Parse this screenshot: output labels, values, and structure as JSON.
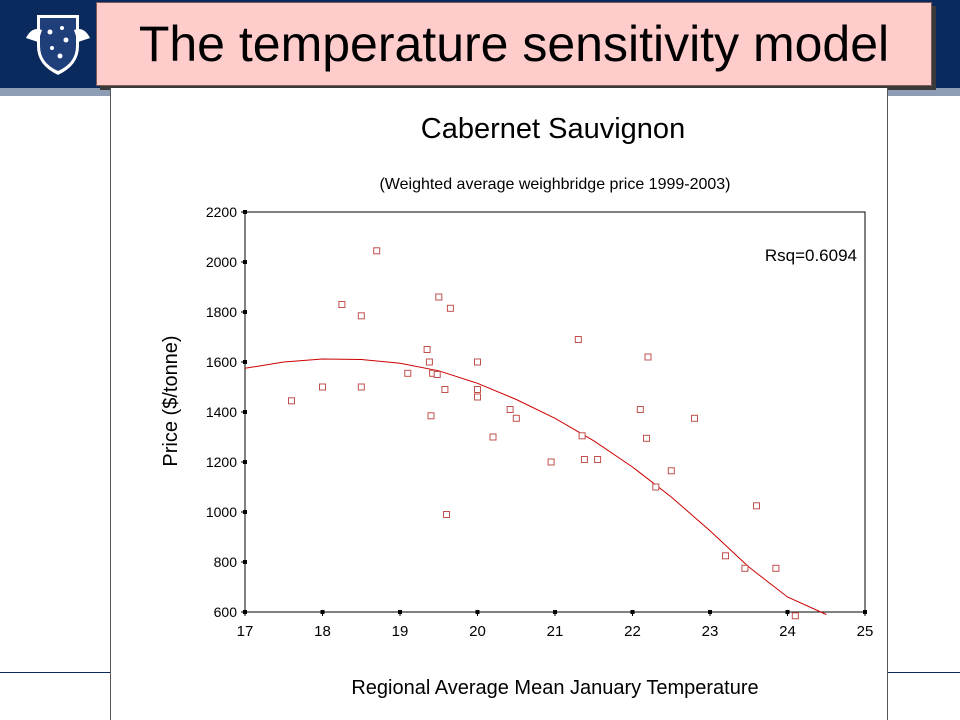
{
  "slide": {
    "title": "The temperature sensitivity model",
    "logo_icon": "university-crest-icon"
  },
  "colors": {
    "header_band": "#0a2a5e",
    "title_bg": "#ffcccc",
    "marker": "#c0504d",
    "curve": "#cc0000"
  },
  "chart_data": {
    "type": "scatter",
    "title": "Cabernet Sauvignon",
    "subtitle": "(Weighted average weighbridge price 1999-2003)",
    "xlabel": "Regional Average Mean January Temperature",
    "ylabel": "Price ($/tonne)",
    "annotation": "Rsq=0.6094",
    "xlim": [
      17,
      25
    ],
    "ylim": [
      600,
      2200
    ],
    "xticks": [
      17,
      18,
      19,
      20,
      21,
      22,
      23,
      24,
      25
    ],
    "yticks": [
      600,
      800,
      1000,
      1200,
      1400,
      1600,
      1800,
      2000,
      2200
    ],
    "grid": false,
    "legend": "none",
    "points": [
      [
        17.6,
        1445
      ],
      [
        18.0,
        1500
      ],
      [
        18.25,
        1830
      ],
      [
        18.5,
        1785
      ],
      [
        18.5,
        1500
      ],
      [
        18.7,
        2045
      ],
      [
        19.1,
        1555
      ],
      [
        19.35,
        1650
      ],
      [
        19.38,
        1600
      ],
      [
        19.4,
        1385
      ],
      [
        19.42,
        1555
      ],
      [
        19.48,
        1550
      ],
      [
        19.5,
        1860
      ],
      [
        19.58,
        1490
      ],
      [
        19.6,
        990
      ],
      [
        19.65,
        1815
      ],
      [
        20.0,
        1600
      ],
      [
        20.0,
        1490
      ],
      [
        20.0,
        1460
      ],
      [
        20.2,
        1300
      ],
      [
        20.42,
        1410
      ],
      [
        20.5,
        1375
      ],
      [
        20.95,
        1200
      ],
      [
        21.3,
        1690
      ],
      [
        21.35,
        1305
      ],
      [
        21.38,
        1210
      ],
      [
        21.55,
        1210
      ],
      [
        22.1,
        1410
      ],
      [
        22.18,
        1295
      ],
      [
        22.2,
        1620
      ],
      [
        22.3,
        1100
      ],
      [
        22.5,
        1165
      ],
      [
        22.8,
        1375
      ],
      [
        23.2,
        825
      ],
      [
        23.45,
        775
      ],
      [
        23.6,
        1025
      ],
      [
        23.85,
        775
      ],
      [
        24.1,
        585
      ]
    ],
    "fit_curve": [
      [
        17.0,
        1575
      ],
      [
        17.5,
        1600
      ],
      [
        18.0,
        1612
      ],
      [
        18.5,
        1610
      ],
      [
        19.0,
        1595
      ],
      [
        19.5,
        1565
      ],
      [
        20.0,
        1515
      ],
      [
        20.5,
        1450
      ],
      [
        21.0,
        1375
      ],
      [
        21.5,
        1285
      ],
      [
        22.0,
        1180
      ],
      [
        22.5,
        1060
      ],
      [
        23.0,
        925
      ],
      [
        23.5,
        780
      ],
      [
        24.0,
        660
      ],
      [
        24.5,
        590
      ]
    ]
  }
}
